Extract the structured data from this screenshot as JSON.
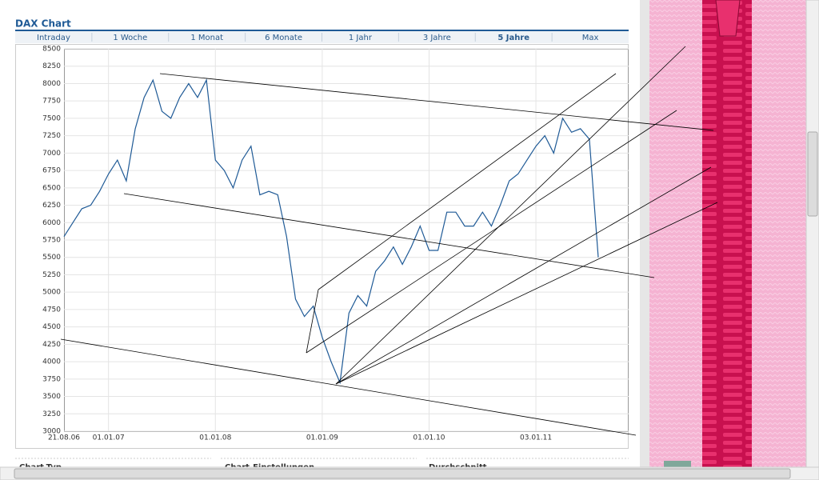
{
  "header": {
    "title": "DAX Chart"
  },
  "tabs": [
    "Intraday",
    "1 Woche",
    "1 Monat",
    "6 Monate",
    "1 Jahr",
    "3 Jahre",
    "5 Jahre",
    "Max"
  ],
  "chart_data": {
    "type": "line",
    "categories": [
      "21.08.06",
      null,
      null,
      null,
      null,
      "01.01.07",
      null,
      null,
      null,
      null,
      null,
      null,
      null,
      null,
      null,
      null,
      null,
      "01.01.08",
      null,
      null,
      null,
      null,
      null,
      null,
      null,
      null,
      null,
      null,
      null,
      "01.01.09",
      null,
      null,
      null,
      null,
      null,
      null,
      null,
      null,
      null,
      null,
      null,
      "01.01.10",
      null,
      null,
      null,
      null,
      null,
      null,
      null,
      null,
      null,
      null,
      null,
      "03.01.11",
      null,
      null,
      null,
      null,
      null,
      null,
      null
    ],
    "values": [
      5800,
      6000,
      6200,
      6250,
      6450,
      6700,
      6900,
      6600,
      7350,
      7800,
      8050,
      7600,
      7500,
      7800,
      8000,
      7800,
      8050,
      6900,
      6750,
      6500,
      6900,
      7100,
      6400,
      6450,
      6400,
      5800,
      4900,
      4650,
      4800,
      4350,
      4000,
      3700,
      4700,
      4950,
      4800,
      5300,
      5450,
      5650,
      5400,
      5650,
      5950,
      5600,
      5600,
      6150,
      6150,
      5950,
      5950,
      6150,
      5950,
      6250,
      6600,
      6700,
      6900,
      7100,
      7250,
      7000,
      7500,
      7300,
      7350,
      7200,
      5500
    ],
    "color": "#1f5a96",
    "ylim": [
      3000,
      8500
    ],
    "yticks": [
      3000,
      3250,
      3500,
      3750,
      4000,
      4250,
      4500,
      4750,
      5000,
      5250,
      5500,
      5750,
      6000,
      6250,
      6500,
      6750,
      7000,
      7250,
      7500,
      7750,
      8000,
      8250,
      8500
    ],
    "grid": true
  },
  "sections": [
    "Chart-Typ",
    "Chart-Einstellungen",
    "Durchschnitt"
  ]
}
